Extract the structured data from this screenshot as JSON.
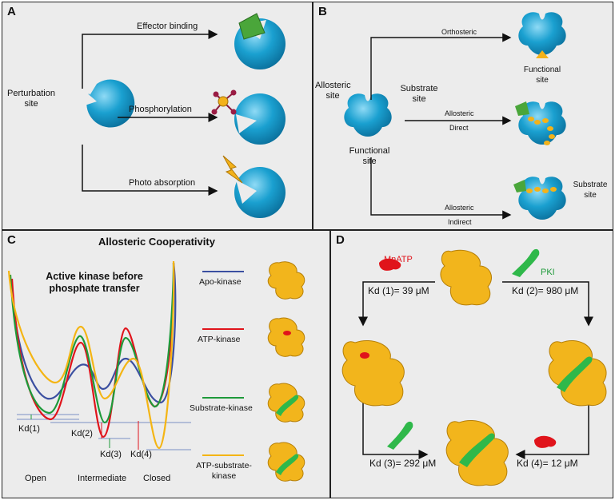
{
  "panel_a": {
    "letter": "A",
    "perturbation_label": "Perturbation\nsite",
    "arrow_top": "Effector binding",
    "arrow_mid": "Phosphorylation",
    "arrow_bot": "Photo absorption"
  },
  "panel_b": {
    "letter": "B",
    "allosteric_site": "Allosteric\nsite",
    "substrate_site": "Substrate\nsite",
    "functional_site": "Functional\nsite",
    "arrow_top": "Orthosteric",
    "arrow_mid_1": "Allosteric",
    "arrow_mid_2": "Direct",
    "arrow_bot_1": "Allosteric",
    "arrow_bot_2": "Indirect",
    "functional_site_right": "Functional\nsite",
    "substrate_site_right": "Substrate\nsite"
  },
  "panel_c": {
    "letter": "C",
    "title": "Allosteric Cooperativity",
    "subtitle": "Active kinase before\nphosphate transfer",
    "kd_labels": [
      "Kd(2)",
      "Kd(1)",
      "Kd(3)",
      "Kd(4)"
    ],
    "states": [
      "Open",
      "Intermediate",
      "Closed"
    ],
    "legend": [
      {
        "label": "Apo-kinase",
        "color": "#3b4fa0"
      },
      {
        "label": "ATP-kinase",
        "color": "#e0141b"
      },
      {
        "label": "Substrate-kinase",
        "color": "#1e9a3a"
      },
      {
        "label": "ATP-substrate-\nkinase",
        "color": "#f4b514"
      }
    ]
  },
  "panel_d": {
    "letter": "D",
    "mnatp": "MnATP",
    "pki": "PKI",
    "kd1": "Kd (1)= 39 μM",
    "kd2": "Kd (2)= 980 μM",
    "kd3": "Kd (3)= 292 μM",
    "kd4": "Kd (4)= 12 μM"
  },
  "colors": {
    "protein_blue": "#1aa0d0",
    "effector_green": "#4aa63a",
    "phosphate_orange": "#f3b21a",
    "kinase_yellow": "#f2b51c",
    "atp_red": "#e0141b",
    "pki_green": "#2fb84a"
  }
}
